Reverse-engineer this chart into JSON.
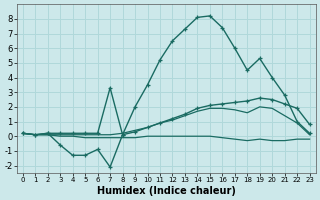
{
  "xlabel": "Humidex (Indice chaleur)",
  "bg_color": "#cce8ea",
  "line_color": "#1a6b62",
  "grid_color": "#b0d8da",
  "xlim": [
    -0.5,
    23.5
  ],
  "ylim": [
    -2.5,
    9.0
  ],
  "xticks": [
    0,
    1,
    2,
    3,
    4,
    5,
    6,
    7,
    8,
    9,
    10,
    11,
    12,
    13,
    14,
    15,
    16,
    17,
    18,
    19,
    20,
    21,
    22,
    23
  ],
  "yticks": [
    -2,
    -1,
    0,
    1,
    2,
    3,
    4,
    5,
    6,
    7,
    8
  ],
  "lines": [
    {
      "x": [
        0,
        1,
        2,
        3,
        4,
        5,
        6,
        7,
        8,
        9,
        10,
        11,
        12,
        13,
        14,
        15,
        16,
        17,
        18,
        19,
        20,
        21,
        22,
        23
      ],
      "y": [
        0.2,
        0.1,
        0.2,
        0.2,
        0.2,
        0.2,
        0.2,
        3.3,
        0.1,
        2.0,
        3.5,
        5.2,
        6.5,
        7.3,
        8.1,
        8.2,
        7.4,
        6.0,
        4.5,
        5.3,
        4.0,
        2.8,
        1.0,
        0.2
      ],
      "marker": true,
      "lw": 1.0
    },
    {
      "x": [
        0,
        1,
        2,
        3,
        4,
        5,
        6,
        7,
        8,
        9,
        10,
        11,
        12,
        13,
        14,
        15,
        16,
        17,
        18,
        19,
        20,
        21,
        22,
        23
      ],
      "y": [
        0.2,
        0.1,
        0.2,
        -0.6,
        -1.3,
        -1.3,
        -0.9,
        -2.1,
        0.1,
        0.3,
        0.6,
        0.9,
        1.2,
        1.5,
        1.9,
        2.1,
        2.2,
        2.3,
        2.4,
        2.6,
        2.5,
        2.2,
        1.9,
        0.8
      ],
      "marker": true,
      "lw": 1.0
    },
    {
      "x": [
        0,
        1,
        2,
        3,
        4,
        5,
        6,
        7,
        8,
        9,
        10,
        11,
        12,
        13,
        14,
        15,
        16,
        17,
        18,
        19,
        20,
        21,
        22,
        23
      ],
      "y": [
        0.2,
        0.1,
        0.1,
        0.1,
        0.1,
        0.1,
        0.1,
        0.1,
        0.2,
        0.4,
        0.6,
        0.9,
        1.1,
        1.4,
        1.7,
        1.9,
        1.9,
        1.8,
        1.6,
        2.0,
        1.9,
        1.4,
        0.9,
        0.1
      ],
      "marker": false,
      "lw": 0.9
    },
    {
      "x": [
        0,
        1,
        2,
        3,
        4,
        5,
        6,
        7,
        8,
        9,
        10,
        11,
        12,
        13,
        14,
        15,
        16,
        17,
        18,
        19,
        20,
        21,
        22,
        23
      ],
      "y": [
        0.2,
        0.1,
        0.1,
        0.0,
        0.0,
        -0.1,
        -0.1,
        -0.1,
        -0.1,
        -0.1,
        0.0,
        0.0,
        0.0,
        0.0,
        0.0,
        0.0,
        -0.1,
        -0.2,
        -0.3,
        -0.2,
        -0.3,
        -0.3,
        -0.2,
        -0.2
      ],
      "marker": false,
      "lw": 0.9
    }
  ]
}
